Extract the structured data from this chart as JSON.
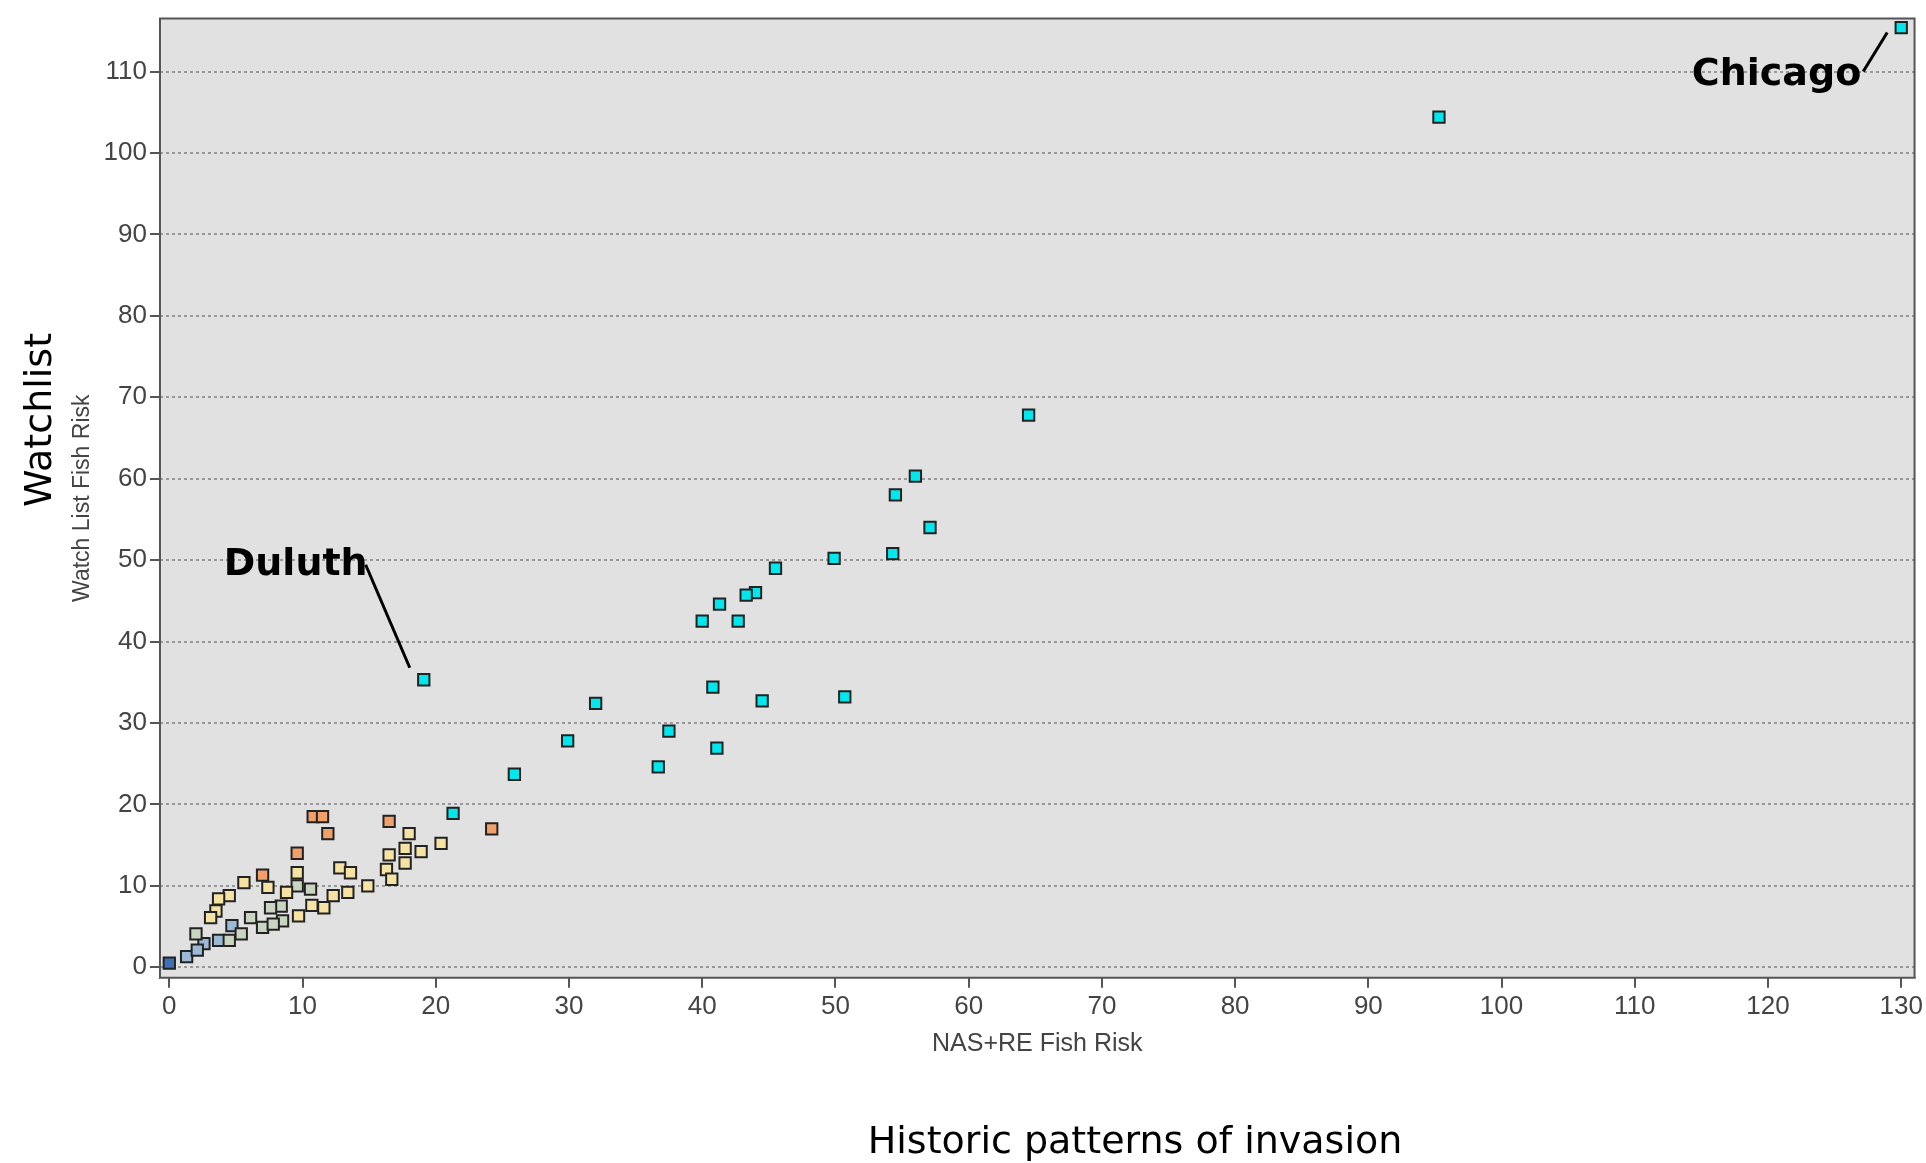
{
  "chart_data": {
    "type": "scatter",
    "xlabel": "NAS+RE Fish Risk",
    "ylabel": "Watch List Fish Risk",
    "annotations": [
      "Watchlist",
      "Historic patterns of invasion",
      {
        "text": "Duluth",
        "x": 19.1,
        "y": 35.3
      },
      {
        "text": "Chicago",
        "x": 130,
        "y": 115.4
      }
    ],
    "xlim": [
      -0.7,
      131
    ],
    "ylim": [
      -1.3,
      116.5
    ],
    "xticks": [
      0,
      10,
      20,
      30,
      40,
      50,
      60,
      70,
      80,
      90,
      100,
      110,
      120,
      130
    ],
    "yticks": [
      0,
      10,
      20,
      30,
      40,
      50,
      60,
      70,
      80,
      90,
      100,
      110
    ],
    "grid": "y",
    "marker": "square",
    "series": [
      {
        "color": "#00e8ee",
        "x": [
          130,
          95.3,
          64.5,
          56.0,
          54.5,
          57.1,
          54.3,
          49.9,
          45.5,
          44.0,
          43.3,
          41.3,
          40.0,
          42.7,
          19.1,
          32.0,
          37.5,
          40.8,
          44.5,
          50.7,
          29.9,
          41.1,
          36.7,
          25.9,
          21.3
        ],
        "values": [
          115.4,
          104.4,
          67.8,
          60.3,
          58,
          54,
          50.8,
          50.2,
          49,
          46,
          45.7,
          44.6,
          42.5,
          42.5,
          35.3,
          32.4,
          29,
          34.4,
          32.7,
          33.2,
          27.8,
          26.9,
          24.6,
          23.7,
          18.9
        ]
      },
      {
        "color": "#f2a06a",
        "x": [
          10.8,
          11.5,
          11.9,
          16.5,
          24.2,
          9.6,
          7.0
        ],
        "values": [
          18.5,
          18.5,
          16.4,
          17.9,
          17.0,
          14.0,
          11.3
        ]
      },
      {
        "color": "#f6e3a4",
        "x": [
          18.0,
          20.4,
          17.7,
          16.5,
          18.9,
          17.7,
          16.3,
          16.7,
          12.8,
          13.6,
          14.9,
          13.4,
          12.3,
          11.6,
          10.7,
          9.6,
          5.6,
          7.4,
          4.5,
          3.7,
          3.5,
          3.1,
          9.7,
          8.8
        ],
        "values": [
          16.4,
          15.2,
          14.6,
          13.8,
          14.2,
          12.8,
          12.0,
          10.8,
          12.2,
          11.6,
          10.0,
          9.2,
          8.8,
          7.3,
          7.6,
          11.6,
          10.4,
          9.8,
          8.8,
          8.4,
          6.9,
          6.1,
          6.3,
          9.2
        ]
      },
      {
        "color": "#c9d5c0",
        "x": [
          9.6,
          10.6,
          8.4,
          8.5,
          7.6,
          6.1,
          7.0,
          7.8,
          5.4,
          2.0,
          4.5
        ],
        "values": [
          10.0,
          9.6,
          7.5,
          5.7,
          7.3,
          6.1,
          4.9,
          5.3,
          4.1,
          4.1,
          3.3
        ]
      },
      {
        "color": "#9cbad6",
        "x": [
          4.7,
          3.7,
          2.6,
          1.3,
          2.1
        ],
        "values": [
          5.1,
          3.3,
          2.9,
          1.3,
          2.1
        ]
      },
      {
        "color": "#3f6fb4",
        "x": [
          0
        ],
        "values": [
          0.5
        ]
      }
    ]
  }
}
